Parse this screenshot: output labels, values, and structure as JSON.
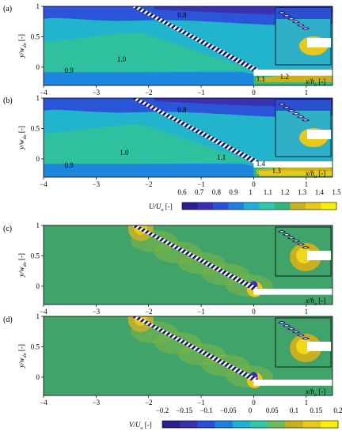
{
  "panels": [
    {
      "label": "(a)",
      "variable": "U",
      "xaxis_label": "x/h",
      "xaxis_sub": "o",
      "xaxis_unit": " [-]",
      "yaxis_label": "y/w",
      "yaxis_sub": "do",
      "yaxis_unit": " [-]",
      "annotations": [
        "0.8",
        "1.0",
        "0.9",
        "1.1",
        "1.2"
      ]
    },
    {
      "label": "(b)",
      "variable": "U",
      "xaxis_label": "x/h",
      "xaxis_sub": "o",
      "xaxis_unit": " [-]",
      "yaxis_label": "y/w",
      "yaxis_sub": "do",
      "yaxis_unit": " [-]",
      "annotations": [
        "0.8",
        "1.0",
        "0.9",
        "1.1",
        "1.4",
        "1.3"
      ]
    },
    {
      "label": "(c)",
      "variable": "V",
      "xaxis_label": "x/h",
      "xaxis_sub": "o",
      "xaxis_unit": " [-]",
      "yaxis_label": "y/w",
      "yaxis_sub": "do",
      "yaxis_unit": " [-]",
      "annotations": []
    },
    {
      "label": "(d)",
      "variable": "V",
      "xaxis_label": "x/h",
      "xaxis_sub": "o",
      "xaxis_unit": " [-]",
      "yaxis_label": "y/w",
      "yaxis_sub": "do",
      "yaxis_unit": " [-]",
      "annotations": []
    }
  ],
  "colorbars": [
    {
      "label": "U/U",
      "label_sub": "o",
      "unit": " [-]",
      "ticks": [
        "0.6",
        "0.7",
        "0.8",
        "0.9",
        "1",
        "1.1",
        "1.2",
        "1.3",
        "1.4",
        "1.5"
      ],
      "colors": [
        "#2a1f8f",
        "#3a2fb0",
        "#2a4fd8",
        "#1f7fe0",
        "#1fb0d8",
        "#2fc8a8",
        "#2fb87a",
        "#c8b020",
        "#e8c818",
        "#f8f000"
      ]
    },
    {
      "label": "V/U",
      "label_sub": "o",
      "unit": " [-]",
      "ticks": [
        "-0.2",
        "-0.15",
        "-0.1",
        "-0.05",
        "0",
        "0.05",
        "0.1",
        "0.15",
        "0.2"
      ],
      "colors": [
        "#2a1f8f",
        "#3a2fb0",
        "#2a4fd8",
        "#1f7fe0",
        "#1fb0d8",
        "#2fc8a8",
        "#6cbc5a",
        "#c8b020",
        "#e8c818",
        "#f8f000"
      ]
    }
  ],
  "chart_data": [
    {
      "type": "heatmap",
      "panel": "(a)",
      "xlim": [
        -4,
        1.5
      ],
      "ylim": [
        -0.3,
        1.0
      ],
      "x_ticks": [
        "-4",
        "-3",
        "-2",
        "-1",
        "0",
        "1"
      ],
      "y_ticks": [
        "0",
        "0.5",
        "1"
      ],
      "colorbar": "U/Uo [-]"
    },
    {
      "type": "heatmap",
      "panel": "(b)",
      "xlim": [
        -4,
        1.5
      ],
      "ylim": [
        -0.3,
        1.0
      ],
      "x_ticks": [
        "-4",
        "-3",
        "-2",
        "-1",
        "0",
        "1"
      ],
      "y_ticks": [
        "0",
        "0.5",
        "1"
      ],
      "colorbar": "U/Uo [-]"
    },
    {
      "type": "heatmap",
      "panel": "(c)",
      "xlim": [
        -4,
        1.5
      ],
      "ylim": [
        -0.3,
        1.0
      ],
      "x_ticks": [
        "-4",
        "-3",
        "-2",
        "-1",
        "0",
        "1"
      ],
      "y_ticks": [
        "0",
        "0.5",
        "1"
      ],
      "colorbar": "V/Uo [-]"
    },
    {
      "type": "heatmap",
      "panel": "(d)",
      "xlim": [
        -4,
        1.5
      ],
      "ylim": [
        -0.3,
        1.0
      ],
      "x_ticks": [
        "-4",
        "-3",
        "-2",
        "-1",
        "0",
        "1"
      ],
      "y_ticks": [
        "0",
        "0.5",
        "1"
      ],
      "colorbar": "V/Uo [-]"
    }
  ]
}
